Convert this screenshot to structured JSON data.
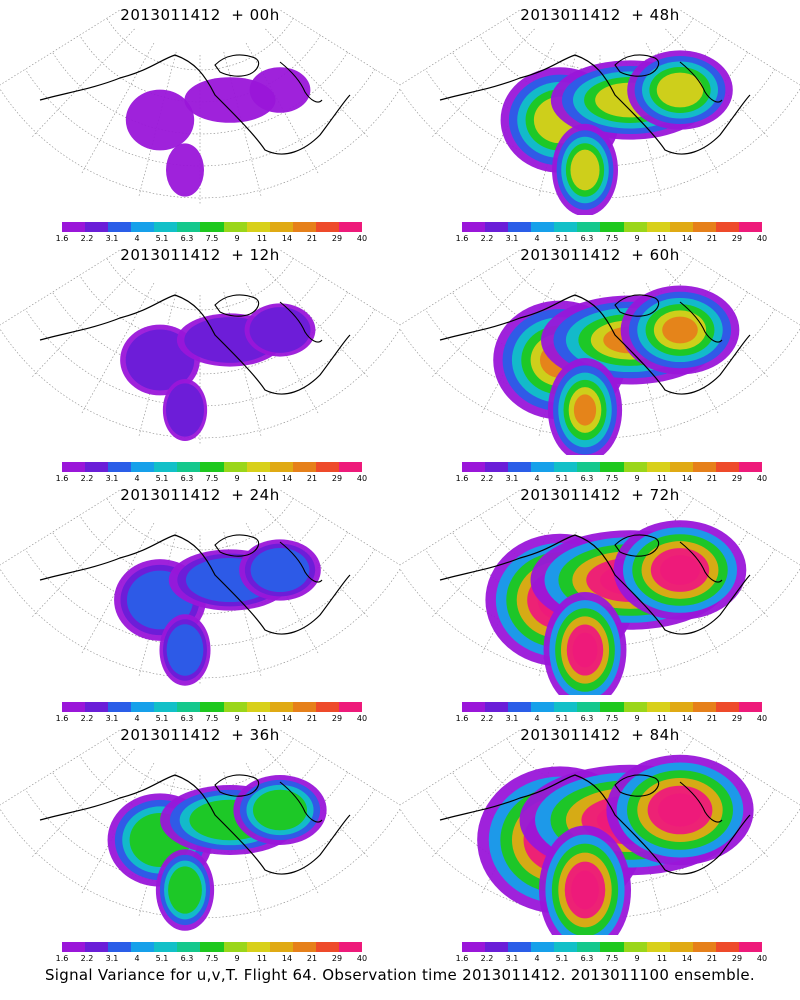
{
  "panels": [
    {
      "title": "2013011412  + 00h",
      "level": 0
    },
    {
      "title": "2013011412  + 48h",
      "level": 4
    },
    {
      "title": "2013011412  + 12h",
      "level": 1
    },
    {
      "title": "2013011412  + 60h",
      "level": 5
    },
    {
      "title": "2013011412  + 24h",
      "level": 2
    },
    {
      "title": "2013011412  + 72h",
      "level": 6
    },
    {
      "title": "2013011412  + 36h",
      "level": 3
    },
    {
      "title": "2013011412  + 84h",
      "level": 7
    }
  ],
  "colorbar": {
    "labels": [
      "1.6",
      "2.2",
      "3.1",
      "4",
      "5.1",
      "6.3",
      "7.5",
      "9",
      "11",
      "14",
      "21",
      "29",
      "40"
    ],
    "colors": [
      "#9a16d9",
      "#6a1ed8",
      "#2a5ee8",
      "#16a0ea",
      "#12c0c8",
      "#14c88c",
      "#1ec81e",
      "#9ad61a",
      "#d8d01a",
      "#e0aa14",
      "#e6801a",
      "#ee4a2a",
      "#ee1a7a"
    ]
  },
  "footer": "Signal Variance for u,v,T. Flight 64. Observation time 2013011412. 2013011100 ensemble."
}
